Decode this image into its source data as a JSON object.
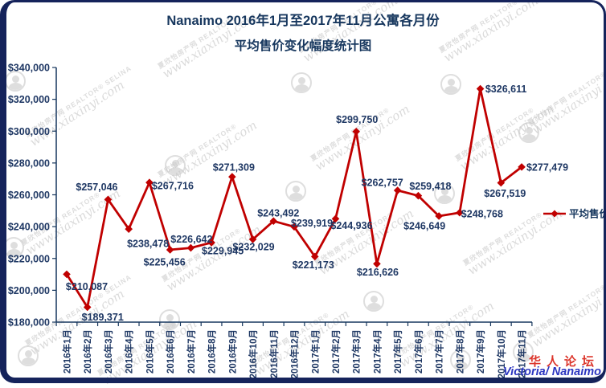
{
  "colors": {
    "navy_text": "#1F3864",
    "axis": "#17375E",
    "line_red": "#C00000",
    "border": "#15235B",
    "forum_red": "#DC352B",
    "region_blue": "#2B35C0",
    "watermark_gray": "#C2C2C2"
  },
  "title": {
    "line1": "Nanaimo 2016年1月至2017年11月公寓各月份",
    "line2": "平均售价变化幅度统计图"
  },
  "watermark": {
    "cn_site": "夏欣怡房产网",
    "realtor": "REALTOR®",
    "selina": "SELINA",
    "site": "www.xiaxinyi.com"
  },
  "legend": {
    "label": "平均售价"
  },
  "footer": {
    "forum": "华人论坛",
    "region": "Victoria/ Nanaimo"
  },
  "chart_data": {
    "type": "line",
    "title": "Nanaimo 2016年1月至2017年11月公寓各月份 平均售价变化幅度统计图",
    "categories": [
      "2016年1月",
      "2016年2月",
      "2016年3月",
      "2016年4月",
      "2016年5月",
      "2016年6月",
      "2016年7月",
      "2016年8月",
      "2016年9月",
      "2016年10月",
      "2016年11月",
      "2016年12月",
      "2017年1月",
      "2017年2月",
      "2017年3月",
      "2017年4月",
      "2017年5月",
      "2017年6月",
      "2017年7月",
      "2017年8月",
      "2017年9月",
      "2017年10月",
      "2017年11月"
    ],
    "series": [
      {
        "name": "平均售价",
        "color": "#C00000",
        "values": [
          210087,
          189371,
          257046,
          238478,
          267716,
          225456,
          226642,
          229945,
          271309,
          232029,
          243492,
          239919,
          221173,
          244936,
          299750,
          216626,
          262757,
          259418,
          246649,
          248768,
          326611,
          267519,
          277479
        ]
      }
    ],
    "point_labels": [
      "$210,087",
      "$189,371",
      "$257,046",
      "$238,478",
      "$267,716",
      "$225,456",
      "$226,642",
      "$229,945",
      "$271,309",
      "$232,029",
      "$243,492",
      "$239,919",
      "$221,173",
      "$244,936",
      "$299,750",
      "$216,626",
      "$262,757",
      "$259,418",
      "$246,649",
      "$248,768",
      "$326,611",
      "$267,519",
      "$277,479"
    ],
    "ylim": [
      180000,
      340000
    ],
    "ytick_step": 20000,
    "ytick_labels": [
      "$180,000",
      "$200,000",
      "$220,000",
      "$240,000",
      "$260,000",
      "$280,000",
      "$300,000",
      "$320,000",
      "$340,000"
    ],
    "xlabel": "",
    "ylabel": "",
    "grid": false,
    "marker": "diamond",
    "legend_position": "right"
  }
}
